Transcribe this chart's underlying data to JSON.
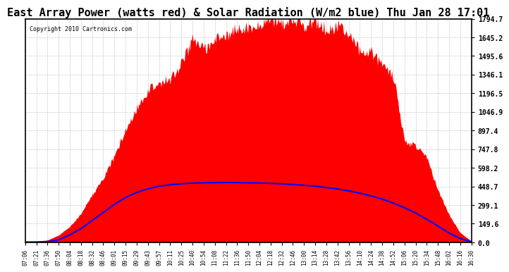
{
  "title": "East Array Power (watts red) & Solar Radiation (W/m2 blue) Thu Jan 28 17:01",
  "copyright": "Copyright 2010 Cartronics.com",
  "y_ticks": [
    0.0,
    149.6,
    299.1,
    448.7,
    598.2,
    747.8,
    897.4,
    1046.9,
    1196.5,
    1346.1,
    1495.6,
    1645.2,
    1794.7
  ],
  "ymax": 1794.7,
  "ymin": 0.0,
  "x_labels": [
    "07:06",
    "07:21",
    "07:36",
    "07:50",
    "08:04",
    "08:18",
    "08:32",
    "08:46",
    "09:01",
    "09:15",
    "09:29",
    "09:43",
    "09:57",
    "10:11",
    "10:25",
    "10:40",
    "10:54",
    "11:08",
    "11:22",
    "11:36",
    "11:50",
    "12:04",
    "12:18",
    "12:32",
    "12:46",
    "13:00",
    "13:14",
    "13:28",
    "13:42",
    "13:56",
    "14:10",
    "14:24",
    "14:38",
    "14:52",
    "15:06",
    "15:20",
    "15:34",
    "15:48",
    "16:02",
    "16:16",
    "16:30"
  ],
  "red_color": "#FF0000",
  "blue_color": "#0000FF",
  "bg_color": "#FFFFFF",
  "plot_bg_color": "#FFFFFF",
  "grid_color": "#AAAAAA",
  "title_fontsize": 11,
  "red_peak": 1794.7,
  "blue_peak": 480.0,
  "num_points": 41,
  "red_values": [
    5,
    8,
    18,
    55,
    120,
    230,
    380,
    540,
    720,
    900,
    1050,
    1180,
    1290,
    1390,
    1470,
    1540,
    1600,
    1650,
    1690,
    1720,
    1750,
    1780,
    1794,
    1790,
    1794,
    1780,
    1760,
    1730,
    1700,
    1660,
    1600,
    1530,
    1440,
    1340,
    820,
    740,
    650,
    430,
    220,
    80,
    10
  ],
  "blue_values": [
    2,
    2,
    5,
    20,
    60,
    110,
    175,
    240,
    305,
    360,
    400,
    430,
    450,
    462,
    470,
    475,
    478,
    479,
    480,
    479,
    478,
    476,
    473,
    469,
    464,
    458,
    450,
    440,
    428,
    413,
    395,
    373,
    347,
    315,
    278,
    235,
    185,
    130,
    75,
    30,
    5
  ]
}
